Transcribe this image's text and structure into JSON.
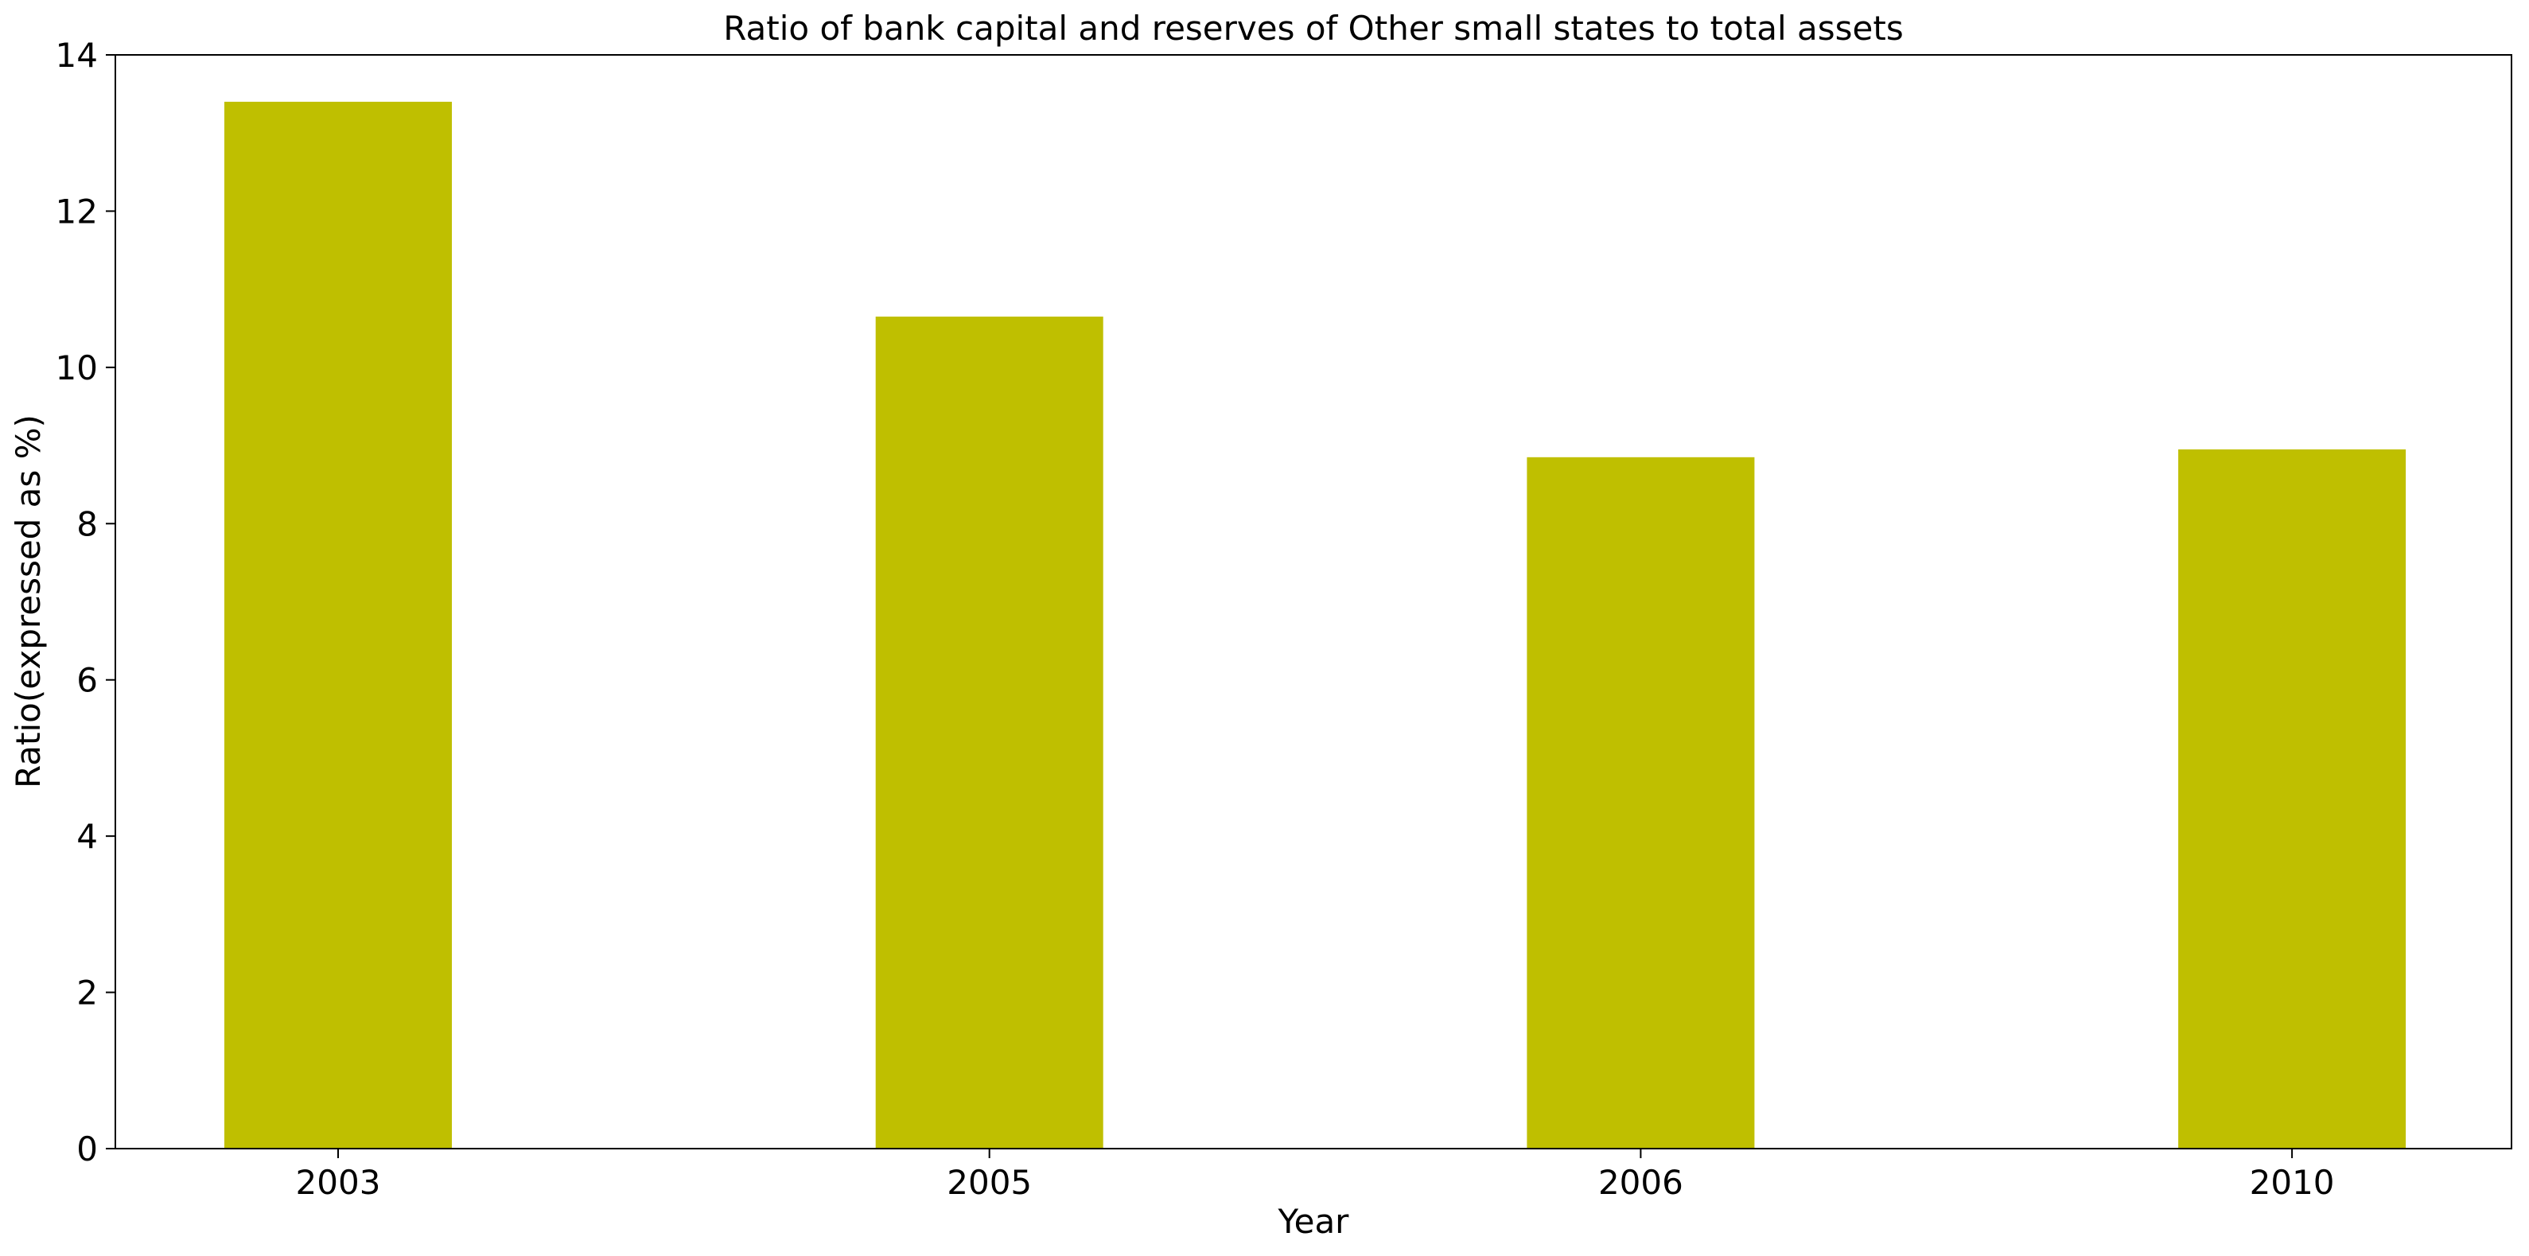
{
  "chart_data": {
    "type": "bar",
    "title": "Ratio of bank capital and reserves of Other small states to total assets",
    "xlabel": "Year",
    "ylabel": "Ratio(expressed as %)",
    "categories": [
      "2003",
      "2005",
      "2006",
      "2010"
    ],
    "values": [
      13.4,
      10.65,
      8.85,
      8.95
    ],
    "ylim": [
      0,
      14
    ],
    "yticks": [
      "0",
      "2",
      "4",
      "6",
      "8",
      "10",
      "12",
      "14"
    ],
    "bar_color": "#bfbf00",
    "grid": false,
    "legend": "none"
  }
}
